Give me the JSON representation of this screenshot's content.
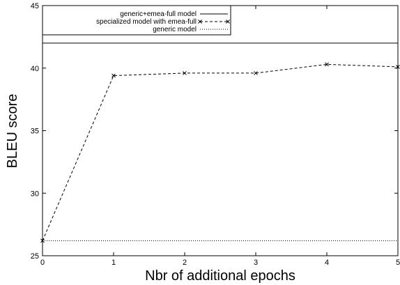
{
  "chart_data": {
    "type": "line",
    "title": "",
    "xlabel": "Nbr of additional epochs",
    "ylabel": "BLEU score",
    "xlim": [
      0,
      5
    ],
    "ylim": [
      25,
      45
    ],
    "x_ticks": [
      0,
      1,
      2,
      3,
      4,
      5
    ],
    "y_ticks": [
      25,
      30,
      35,
      40,
      45
    ],
    "x_tick_labels": [
      "0",
      "1",
      "2",
      "3",
      "4",
      "5"
    ],
    "y_tick_labels": [
      "25",
      "30",
      "35",
      "40",
      "45"
    ],
    "grid": false,
    "legend_position": "top",
    "series": [
      {
        "name": "generic+emea-full model",
        "style": "solid",
        "markers": false,
        "x": [
          0,
          5
        ],
        "y": [
          42.0,
          42.0
        ]
      },
      {
        "name": "specialized model with emea-full",
        "style": "dashed",
        "markers": true,
        "x": [
          0,
          1,
          2,
          3,
          4,
          5
        ],
        "y": [
          26.2,
          39.4,
          39.6,
          39.6,
          40.3,
          40.1
        ]
      },
      {
        "name": "generic model",
        "style": "dotted",
        "markers": false,
        "x": [
          0,
          5
        ],
        "y": [
          26.2,
          26.2
        ]
      }
    ]
  }
}
